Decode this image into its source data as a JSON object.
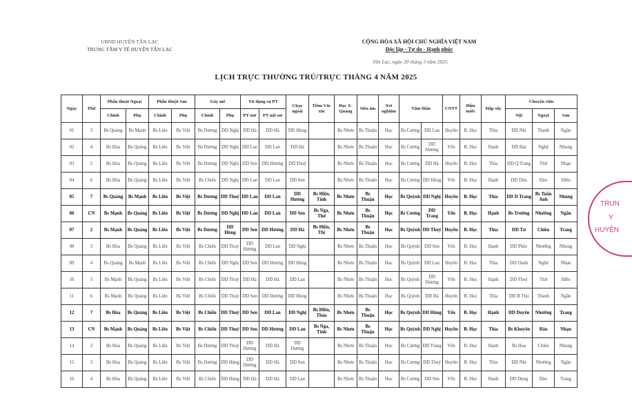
{
  "header": {
    "org_line1": "UBND HUYỆN TÂN LẠC",
    "org_line2": "TRUNG TÂM Y TẾ HUYỆN TÂN LẠC",
    "nation_line1": "CỘNG HÒA XÃ HỘI CHỦ NGHĨA VIỆT NAM",
    "nation_line2": "Độc lập - Tự do - Hạnh phúc",
    "date": "Tân Lạc, ngày 20 tháng 3 năm 2025",
    "title": "LỊCH TRỰC THƯỜNG TRÚ/TRỰC THÁNG 4 NĂM 2025"
  },
  "table": {
    "group_headers": {
      "ngay": "Ngày",
      "thu": "Thứ",
      "pt_ngoai": "Phẫu thuật Ngoại",
      "pt_san": "Phẫu thuật Sản",
      "gay_me": "Gây mê",
      "dung_cu": "Tít dụng cụ PT",
      "chay_ngoai": "Chạy ngoài",
      "tiem": "Tiêm Vắc xin",
      "xquang": "Đọc X-Quang",
      "sieu_am": "Siêu âm",
      "xet_nghiem": "Xét nghiệm",
      "tam_than": "Tâm thần",
      "cntt": "CNTT",
      "dien_nuoc": "Điện nước",
      "hap_say": "Hấp sấy",
      "chuyen_vien": "Chuyển viện"
    },
    "sub_headers": [
      "Chính",
      "Phụ",
      "Chính",
      "Phụ",
      "Chính",
      "Phụ",
      "PT mở",
      "PT nội soi",
      "Nội",
      "Ngoại",
      "Sản"
    ],
    "rows": [
      {
        "bold": false,
        "cells": [
          "01",
          "3",
          "Bs Quảng",
          "Bs Mạnh",
          "Bs Liên",
          "Bs Việt",
          "Bs Dương",
          "DD Nghị",
          "DD Hà",
          "DD Hà",
          "DD Hùng",
          "",
          "Bs Nhơn",
          "Bs Thuận",
          "Học",
          "Bs Cương",
          "DD Lan",
          "Huyền",
          "B. Học",
          "Thìa",
          "DD Nhi",
          "Thanh",
          "Ngần"
        ]
      },
      {
        "bold": false,
        "cells": [
          "02",
          "4",
          "Bs Hòa",
          "Bs Quảng",
          "Bs Liên",
          "Bs Việt",
          "Bs Dương",
          "DD Nghị",
          "DD Lan",
          "DD Lan",
          "DD Hà",
          "",
          "Bs Nhơn",
          "Bs Thuận",
          "Học",
          "Bs Cương",
          "DD Hương",
          "Yến",
          "B. Học",
          "Hạnh",
          "DD Đạt",
          "Nghệ",
          "Nhung"
        ]
      },
      {
        "bold": false,
        "cells": [
          "03",
          "5",
          "Bs Hòa",
          "Bs Quảng",
          "Bs Liên",
          "Bs Việt",
          "Bs Dương",
          "DD Nghị",
          "DD Sen",
          "DD Hương",
          "DD Thuỷ",
          "",
          "Bs Nhơn",
          "Bs Thuận",
          "Học",
          "Bs Cương",
          "DD Hà",
          "Huyền",
          "B. Học",
          "Thìa",
          "DD Q Trang",
          "Thứ",
          "Nhạn"
        ]
      },
      {
        "bold": false,
        "cells": [
          "04",
          "6",
          "Bs Hòa",
          "Bs Quảng",
          "Bs Liên",
          "Bs Việt",
          "Bs Chiến",
          "DD Nghị",
          "DD Lan",
          "DD Lan",
          "DD Sen",
          "",
          "Bs Nhơn",
          "Bs Thuận",
          "Học",
          "Bs Cương",
          "DD Hùng",
          "Yến",
          "B. Học",
          "Hạnh",
          "DD Dừa",
          "Đào",
          "Hiền"
        ]
      },
      {
        "bold": true,
        "cells": [
          "05",
          "7",
          "Bs Quảng",
          "Bs Mạnh",
          "Bs Liên",
          "Bs Việt",
          "Bs Dương",
          "DD Thuỷ",
          "DD Lan",
          "DD Lan",
          "DD Hương",
          "Bs Hiền, Tính",
          "Bs Nhơn",
          "Bs Thuận",
          "Học",
          "Bs Quỳnh",
          "DD Nghị",
          "Huyền",
          "B. Học",
          "Thìa",
          "DD D Trang",
          "Bs Tuấn Anh",
          "Nhung"
        ]
      },
      {
        "bold": true,
        "cells": [
          "06",
          "CN",
          "Bs Mạnh",
          "Bs Quảng",
          "Bs Liên",
          "Bs Việt",
          "Bs Dương",
          "DD Nghị",
          "DD Lan",
          "DD Lan",
          "DD Sen",
          "Bs Nga, Thơ",
          "Bs Nhơn",
          "Bs Thuận",
          "Học",
          "Bs Cương",
          "DD Trang",
          "Yến",
          "B. Học",
          "Hạnh",
          "Bs Trường",
          "Nhường",
          "Ngần"
        ]
      },
      {
        "bold": true,
        "cells": [
          "07",
          "2",
          "Bs Mạnh",
          "Bs Quảng",
          "Bs Liên",
          "Bs Việt",
          "Bs Dương",
          "DD Hùng",
          "DD Sen",
          "DD Hương",
          "DD Hà",
          "Bs Hiền, Thi",
          "Bs Nhơn",
          "Bs Thuận",
          "Học",
          "Bs Quỳnh",
          "DD Thuỷ",
          "Huyền",
          "B. Học",
          "Thìa",
          "DD Tư",
          "Chiêu",
          "Trang"
        ]
      },
      {
        "bold": false,
        "cells": [
          "08",
          "3",
          "Bs Hòa",
          "Bs Quảng",
          "Bs Liên",
          "Bs Việt",
          "Bs Chiến",
          "DD Thuỷ",
          "DD Hương",
          "DD Lan",
          "DD Nghị",
          "",
          "Bs Nhơn",
          "Bs Thuận",
          "Học",
          "Bs Quỳnh",
          "DD Sen",
          "Yến",
          "B. Học",
          "Hạnh",
          "DD Phúc",
          "Nhường",
          "Nhung"
        ]
      },
      {
        "bold": false,
        "cells": [
          "09",
          "4",
          "Bs Quảng",
          "Bs Mạnh",
          "Bs Liên",
          "Bs Việt",
          "Bs Chiến",
          "DD Nghị",
          "DD Sen",
          "DD Hương",
          "DD Hùng",
          "",
          "Bs Nhơn",
          "Bs Thuận",
          "Học",
          "Bs Quỳnh",
          "DD Lan",
          "Huyền",
          "B. Học",
          "Thìa",
          "DD Oanh",
          "Nghệ",
          "Nhạn"
        ]
      },
      {
        "bold": false,
        "cells": [
          "10",
          "5",
          "Bs Mạnh",
          "Bs Quảng",
          "Bs Liên",
          "Bs Việt",
          "Bs Chiến",
          "DD Thuỷ",
          "DD Hà",
          "DD Hà",
          "DD Lan",
          "",
          "Bs Nhơn",
          "Bs Thuận",
          "Học",
          "Bs Quỳnh",
          "DD Hương",
          "Yến",
          "B. Học",
          "Hạnh",
          "DD Thuỷ",
          "Thứ",
          "Hiền"
        ]
      },
      {
        "bold": false,
        "cells": [
          "11",
          "6",
          "Bs Mạnh",
          "Bs Quảng",
          "Bs Liên",
          "Bs Việt",
          "Bs Chiến",
          "DD Thuỷ",
          "DD Sen",
          "DD Hương",
          "DD Hùng",
          "",
          "Bs Nhơn",
          "Bs Thuận",
          "Học",
          "Bs Quỳnh",
          "DD Hà",
          "Huyền",
          "B. Học",
          "Thìa",
          "DD B Thu",
          "Thanh",
          "Ngần"
        ]
      },
      {
        "bold": true,
        "cells": [
          "12",
          "7",
          "Bs Hòa",
          "Bs Quảng",
          "Bs Liên",
          "Bs Việt",
          "Bs Chiến",
          "DD Thuỷ",
          "DD Sen",
          "DD Lan",
          "DD Nghị",
          "Bs Hiền, Thảo",
          "Bs Nhơn",
          "Bs Thuận",
          "Học",
          "Bs Quỳnh",
          "DD Hùng",
          "Yến",
          "B. Học",
          "Hạnh",
          "DD Duyên",
          "Nhường",
          "Trang"
        ]
      },
      {
        "bold": true,
        "cells": [
          "13",
          "CN",
          "Bs Mạnh",
          "Bs Quảng",
          "Bs Liên",
          "Bs Việt",
          "Bs Chiến",
          "DD Thuỷ",
          "DD Sen",
          "DD Hương",
          "DD Lan",
          "Bs Nga, Tính",
          "Bs Nhơn",
          "Bs Thuận",
          "Học",
          "Bs Quỳnh",
          "DD Nghị",
          "Huyền",
          "B. Học",
          "Thìa",
          "Bs Khuyên",
          "Đào",
          "Nhạn"
        ]
      },
      {
        "bold": false,
        "cells": [
          "14",
          "2",
          "Bs Hòa",
          "Bs Quảng",
          "Bs Liên",
          "Bs Việt",
          "Bs Dương",
          "DD Thuỷ",
          "DD Hương",
          "DD Hà",
          "DD Hương",
          "",
          "Bs Nhơn",
          "Bs Thuận",
          "Học",
          "Bs Cương",
          "DD Trang",
          "Yến",
          "B. Học",
          "Hạnh",
          "Bs Hoa",
          "Chiêu",
          "Nhung"
        ]
      },
      {
        "bold": false,
        "cells": [
          "15",
          "3",
          "Bs Hòa",
          "Bs Quảng",
          "Bs Liên",
          "Bs Việt",
          "Bs Dương",
          "DD Hùng",
          "DD Hương",
          "DD Hà",
          "DD Sen",
          "",
          "Bs Nhơn",
          "Bs Thuận",
          "Học",
          "Bs Cương",
          "DD Thuỷ",
          "Huyền",
          "B. Học",
          "Thìa",
          "DD Nhi",
          "Nhường",
          "Ngần"
        ]
      },
      {
        "bold": false,
        "cells": [
          "16",
          "4",
          "Bs Hòa",
          "Bs Quảng",
          "Bs Liên",
          "Bs Việt",
          "Bs Chiến",
          "DD Hùng",
          "DD Hà",
          "DD Hà",
          "DD Lan",
          "",
          "Bs Nhơn",
          "Bs Thuận",
          "Học",
          "Bs Cương",
          "DD Sen",
          "Yến",
          "B. Học",
          "Hạnh",
          "DD Dung",
          "Đào",
          "Trang"
        ]
      }
    ]
  },
  "stamp": {
    "lines": [
      "TRUN",
      "Y",
      "HUYỆN"
    ],
    "color": "#d04060"
  }
}
